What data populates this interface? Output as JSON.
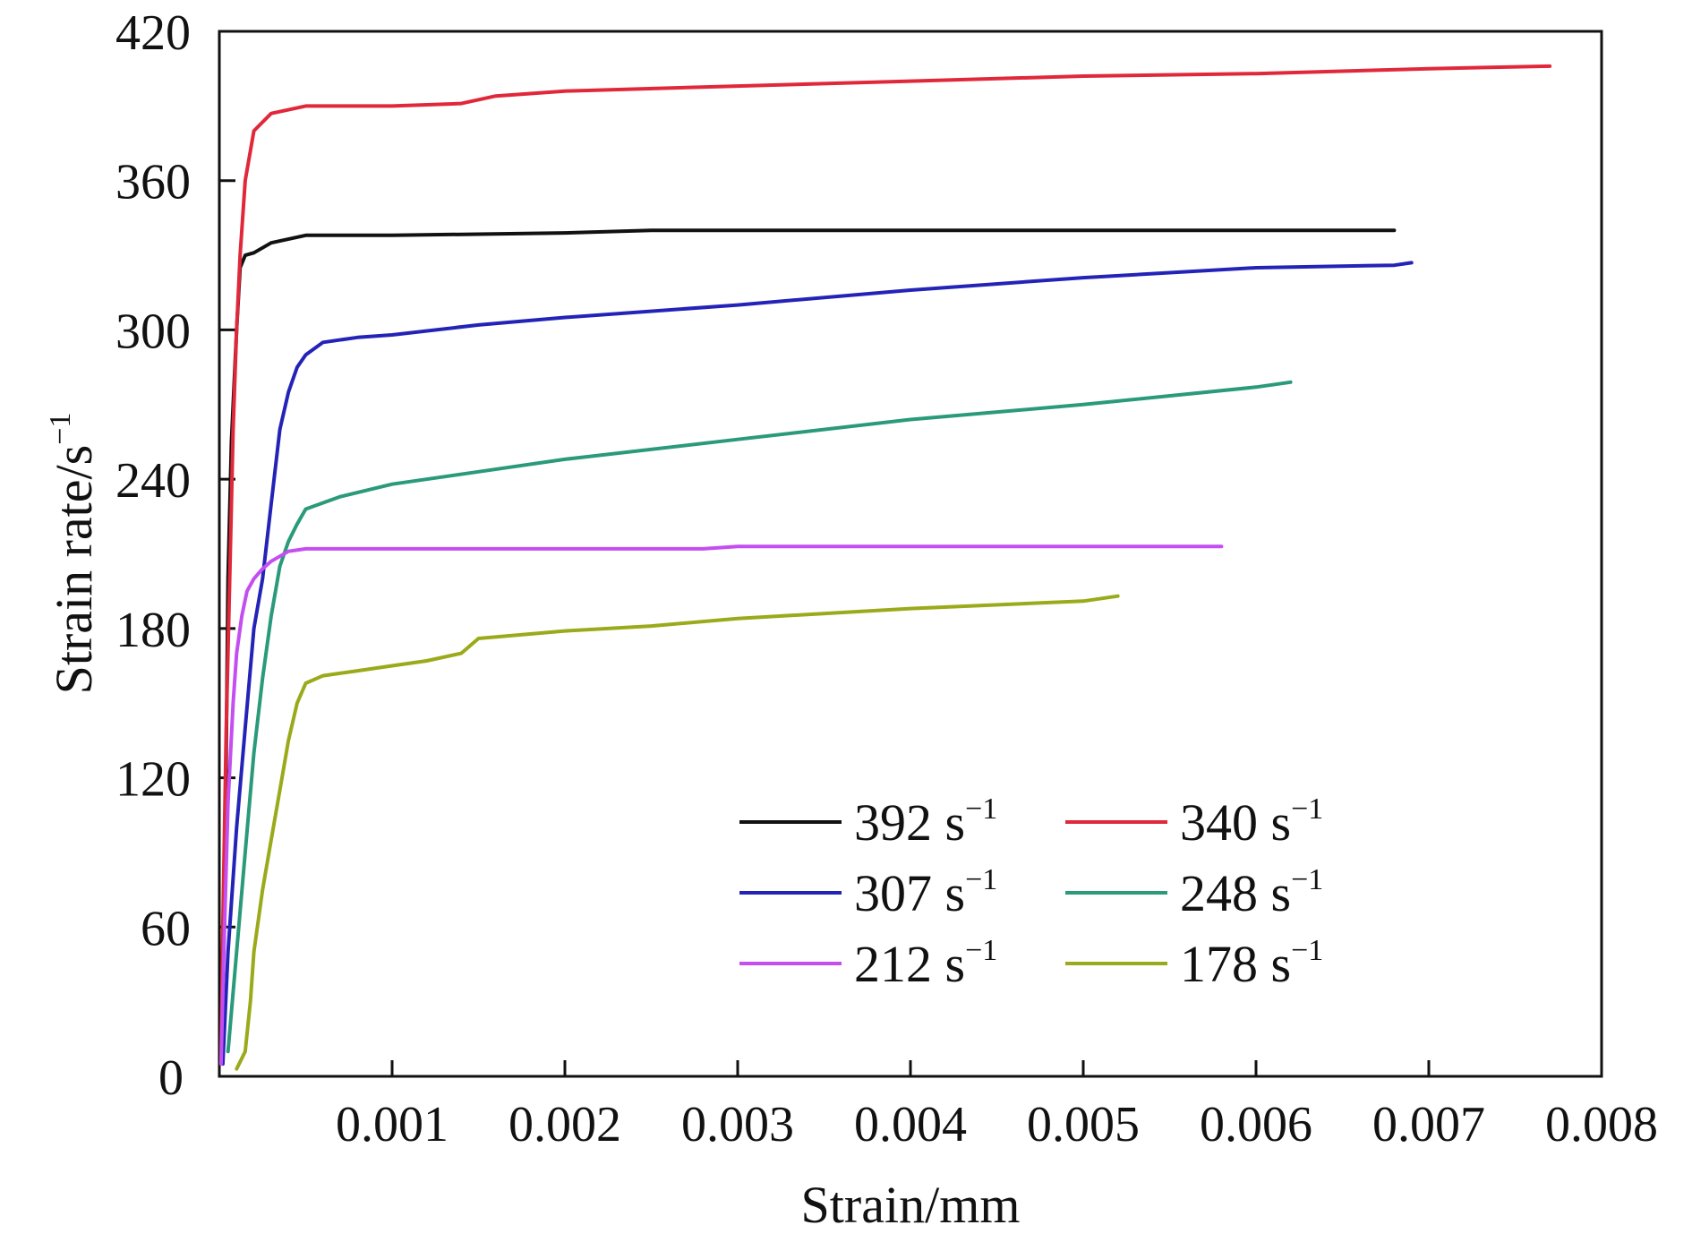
{
  "chart_data": {
    "type": "line",
    "title": "",
    "xlabel": "Strain/mm",
    "ylabel": "Strain rate/s",
    "ylabel_superscript": "−1",
    "xlim": [
      0,
      0.008
    ],
    "ylim": [
      0,
      420
    ],
    "x_ticks": [
      "0.001",
      "0.002",
      "0.003",
      "0.004",
      "0.005",
      "0.006",
      "0.007",
      "0.008"
    ],
    "x_tick_values": [
      0.001,
      0.002,
      0.003,
      0.004,
      0.005,
      0.006,
      0.007,
      0.008
    ],
    "y_ticks": [
      "0",
      "60",
      "120",
      "180",
      "240",
      "300",
      "360",
      "420"
    ],
    "y_tick_values": [
      0,
      60,
      120,
      180,
      240,
      300,
      360,
      420
    ],
    "grid": false,
    "legend_position": "bottom-right",
    "legend_columns": 2,
    "series": [
      {
        "name": "392 s",
        "name_superscript": "−1",
        "color": "#111111",
        "x": [
          3e-05,
          4e-05,
          5e-05,
          7e-05,
          9e-05,
          0.0001,
          0.00012,
          0.00015,
          0.0002,
          0.0003,
          0.0005,
          0.001,
          0.002,
          0.0025,
          0.003,
          0.005,
          0.0068
        ],
        "y": [
          60,
          130,
          200,
          255,
          285,
          300,
          325,
          330,
          331,
          335,
          338,
          338,
          339,
          340,
          340,
          340,
          340
        ]
      },
      {
        "name": "340 s",
        "name_superscript": "−1",
        "color": "#e0283a",
        "x": [
          1e-05,
          2e-05,
          4e-05,
          6e-05,
          8e-05,
          0.0001,
          0.00012,
          0.00015,
          0.0002,
          0.0003,
          0.0005,
          0.001,
          0.0014,
          0.0016,
          0.002,
          0.003,
          0.004,
          0.005,
          0.006,
          0.007,
          0.0077
        ],
        "y": [
          5,
          60,
          140,
          200,
          260,
          300,
          330,
          360,
          380,
          387,
          390,
          390,
          391,
          394,
          396,
          398,
          400,
          402,
          403,
          405,
          406
        ]
      },
      {
        "name": "307 s",
        "name_superscript": "−1",
        "color": "#2323b8",
        "x": [
          2e-05,
          5e-05,
          0.0001,
          0.00015,
          0.0002,
          0.00025,
          0.0003,
          0.00035,
          0.0004,
          0.00045,
          0.0005,
          0.0006,
          0.0008,
          0.001,
          0.0015,
          0.002,
          0.003,
          0.004,
          0.005,
          0.006,
          0.0068,
          0.0069
        ],
        "y": [
          5,
          50,
          100,
          140,
          180,
          200,
          230,
          260,
          275,
          285,
          290,
          295,
          297,
          298,
          302,
          305,
          310,
          316,
          321,
          325,
          326,
          327
        ]
      },
      {
        "name": "248 s",
        "name_superscript": "−1",
        "color": "#2a9a7a",
        "x": [
          5e-05,
          0.0001,
          0.00015,
          0.0002,
          0.00025,
          0.0003,
          0.00035,
          0.0004,
          0.00045,
          0.0005,
          0.0007,
          0.001,
          0.0015,
          0.002,
          0.003,
          0.004,
          0.005,
          0.006,
          0.0062
        ],
        "y": [
          10,
          50,
          90,
          130,
          160,
          185,
          205,
          215,
          222,
          228,
          233,
          238,
          243,
          248,
          256,
          264,
          270,
          277,
          279
        ]
      },
      {
        "name": "212 s",
        "name_superscript": "−1",
        "color": "#c44ef0",
        "x": [
          1e-05,
          3e-05,
          5e-05,
          8e-05,
          0.0001,
          0.00013,
          0.00016,
          0.0002,
          0.00025,
          0.0003,
          0.0004,
          0.0005,
          0.001,
          0.002,
          0.0028,
          0.003,
          0.004,
          0.005,
          0.0058
        ],
        "y": [
          5,
          60,
          110,
          150,
          170,
          185,
          195,
          200,
          204,
          207,
          211,
          212,
          212,
          212,
          212,
          213,
          213,
          213,
          213
        ]
      },
      {
        "name": "178 s",
        "name_superscript": "−1",
        "color": "#9aaa1a",
        "x": [
          0.0001,
          0.00015,
          0.00018,
          0.0002,
          0.00025,
          0.0003,
          0.00035,
          0.0004,
          0.00045,
          0.0005,
          0.0006,
          0.0008,
          0.001,
          0.0012,
          0.0014,
          0.0015,
          0.002,
          0.0025,
          0.003,
          0.004,
          0.005,
          0.0052
        ],
        "y": [
          3,
          10,
          30,
          50,
          75,
          95,
          115,
          135,
          150,
          158,
          161,
          163,
          165,
          167,
          170,
          176,
          179,
          181,
          184,
          188,
          191,
          193
        ]
      }
    ]
  }
}
